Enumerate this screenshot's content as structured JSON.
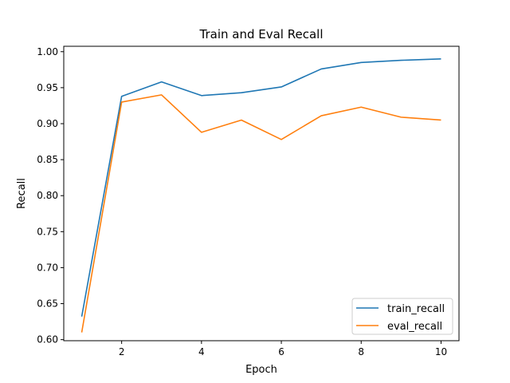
{
  "chart_data": {
    "type": "line",
    "title": "Train and Eval Recall",
    "xlabel": "Epoch",
    "ylabel": "Recall",
    "x": [
      1,
      2,
      3,
      4,
      5,
      6,
      7,
      8,
      9,
      10
    ],
    "xlim": [
      0.55,
      10.45
    ],
    "ylim": [
      0.5985,
      1.0075
    ],
    "xticks": [
      2,
      4,
      6,
      8,
      10
    ],
    "yticks": [
      0.6,
      0.65,
      0.7,
      0.75,
      0.8,
      0.85,
      0.9,
      0.95,
      1.0
    ],
    "grid": false,
    "legend_position": "lower-right",
    "series": [
      {
        "name": "train_recall",
        "color": "#1f77b4",
        "values": [
          0.632,
          0.938,
          0.958,
          0.939,
          0.943,
          0.951,
          0.976,
          0.985,
          0.988,
          0.99
        ]
      },
      {
        "name": "eval_recall",
        "color": "#ff7f0e",
        "values": [
          0.61,
          0.93,
          0.94,
          0.888,
          0.905,
          0.878,
          0.911,
          0.923,
          0.909,
          0.905
        ]
      }
    ]
  }
}
